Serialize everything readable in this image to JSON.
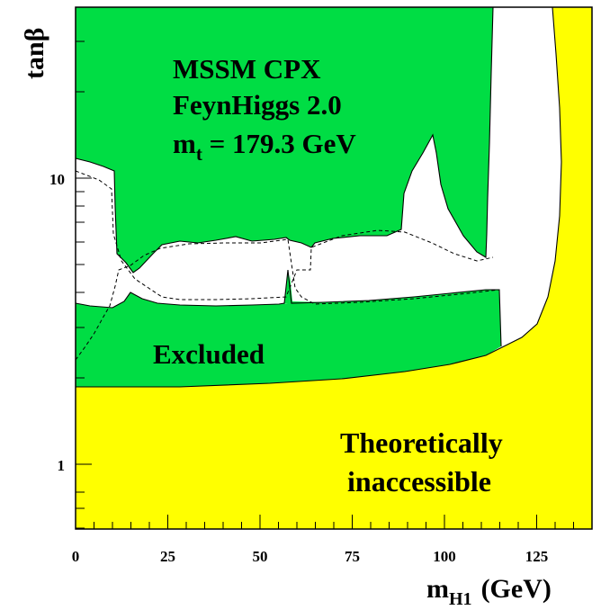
{
  "chart_data": {
    "type": "area",
    "title": "",
    "xlabel": "m",
    "xlabel_sub": "H1",
    "xlabel_unit": "(GeV)",
    "ylabel": "tanβ",
    "x_ticks": [
      "0",
      "25",
      "50",
      "75",
      "100",
      "125"
    ],
    "y_ticks": [
      "1",
      "10"
    ],
    "xlim": [
      0,
      140
    ],
    "ylim": [
      0.6,
      40
    ],
    "y_scale": "log",
    "grid": false,
    "annotation": {
      "line1": "MSSM CPX",
      "line2": "FeynHiggs 2.0",
      "line3_main": "m",
      "line3_sub": "t",
      "line3_rest": " = 179.3 GeV"
    },
    "regions": [
      {
        "name": "Excluded",
        "color": "#00dd44"
      },
      {
        "name": "Theoretically inaccessible",
        "color": "#ffff00",
        "label_line1": "Theoretically",
        "label_line2": "inaccessible"
      }
    ],
    "region_labels": {
      "excluded": "Excluded"
    }
  }
}
